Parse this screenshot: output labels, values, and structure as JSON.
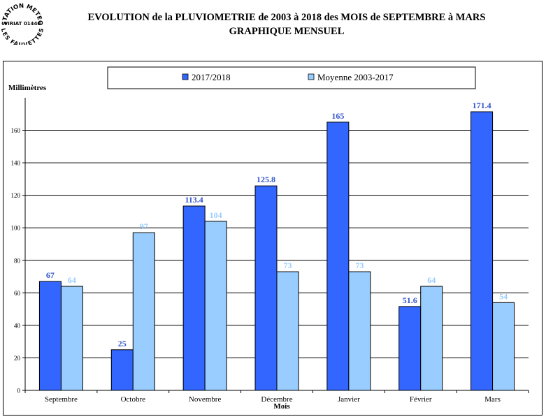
{
  "stamp": {
    "line1": "STATION METEO",
    "line2": "VIRIAT 01440",
    "line3": "LES FAUVETTES"
  },
  "title": {
    "line1": "EVOLUTION de la PLUVIOMETRIE de 2003 à 2018 des MOIS de SEPTEMBRE à MARS",
    "line2": "GRAPHIQUE MENSUEL"
  },
  "colors": {
    "series1": "#3366ff",
    "series2": "#99ccff",
    "label1": "#3355cc",
    "label2": "#99ccff"
  },
  "chart_data": {
    "type": "bar",
    "ylabel": "Millimètres",
    "xlabel": "Mois",
    "ylim": [
      0,
      180
    ],
    "yticks": [
      0,
      20,
      40,
      60,
      80,
      100,
      120,
      140,
      160
    ],
    "grid": true,
    "legend_position": "top",
    "categories": [
      "Septembre",
      "Octobre",
      "Novembre",
      "Décembre",
      "Janvier",
      "Février",
      "Mars"
    ],
    "series": [
      {
        "name": "2017/2018",
        "values": [
          67,
          25,
          113.4,
          125.8,
          165,
          51.6,
          171.4
        ],
        "labels": [
          "67",
          "25",
          "113.4",
          "125.8",
          "165",
          "51.6",
          "171.4"
        ]
      },
      {
        "name": "Moyenne 2003-2017",
        "values": [
          64,
          97,
          104,
          73,
          73,
          64,
          54
        ],
        "labels": [
          "64",
          "97",
          "104",
          "73",
          "73",
          "64",
          "54"
        ]
      }
    ]
  }
}
